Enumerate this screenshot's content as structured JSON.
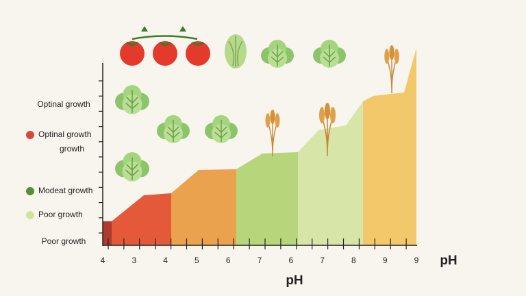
{
  "x_labels": [
    "4",
    "3",
    "4",
    "5",
    "6",
    "7",
    "6",
    "7",
    "8",
    "9",
    "9"
  ],
  "axis_title_right": "pH",
  "axis_title_bottom": "pH",
  "y_labels": [
    "Optinal growth",
    "growth",
    "Poor growth"
  ],
  "legend": [
    {
      "label": "Optinal growth",
      "color": "#d9463a"
    },
    {
      "label": "Modeat growth",
      "color": "#5a8a3c"
    },
    {
      "label": "Poor growth",
      "color": "#d4e39a"
    }
  ]
}
